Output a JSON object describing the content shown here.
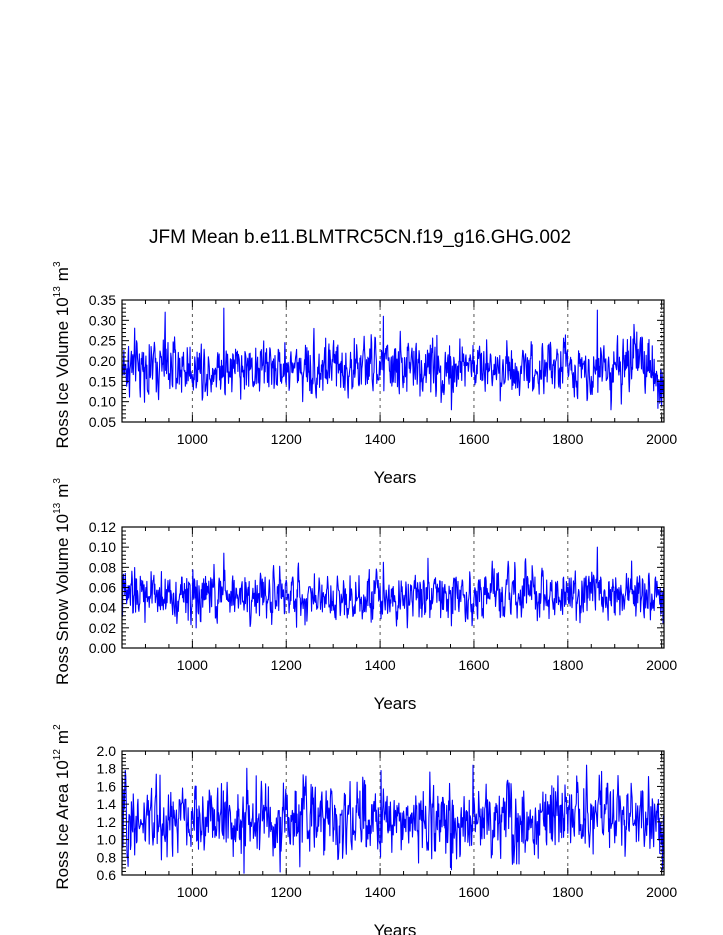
{
  "chart_data": {
    "title": "JFM Mean b.e11.BLMTRC5CN.f19_g16.GHG.002",
    "line_color": "#0000ff",
    "xlim": [
      850,
      2005
    ],
    "x_ticks": [
      1000,
      1200,
      1400,
      1600,
      1800,
      2000
    ],
    "x_tick_labels": [
      "1000",
      "1200",
      "1400",
      "1600",
      "1800",
      "2000"
    ],
    "dashed_vlines_at": [
      1000,
      1200,
      1400,
      1600,
      1800,
      2000
    ],
    "panels": [
      {
        "type": "line",
        "xlabel": "Years",
        "ylabel": {
          "main": "Ross Ice Volume 10",
          "sup": "13",
          "unit": "m",
          "unit_sup": "3"
        },
        "ylim": [
          0.05,
          0.35
        ],
        "y_ticks": [
          0.05,
          0.1,
          0.15,
          0.2,
          0.25,
          0.3,
          0.35
        ],
        "y_tick_labels": [
          "0.05",
          "0.10",
          "0.15",
          "0.20",
          "0.25",
          "0.30",
          "0.35"
        ],
        "series": {
          "name": "Ross Ice Volume",
          "x_start": 850,
          "x_end": 2005,
          "mean": 0.185,
          "spread": 0.035,
          "min": 0.08,
          "max": 0.33,
          "end_trend": [
            1985,
            2005,
            -0.06
          ],
          "peaks": [
            {
              "year": 1067,
              "value": 0.33
            },
            {
              "year": 1863,
              "value": 0.325
            },
            {
              "year": 1407,
              "value": 0.31
            },
            {
              "year": 942,
              "value": 0.32
            },
            {
              "year": 1941,
              "value": 0.29
            },
            {
              "year": 1552,
              "value": 0.08
            },
            {
              "year": 2000,
              "value": 0.09
            }
          ]
        }
      },
      {
        "type": "line",
        "xlabel": "Years",
        "ylabel": {
          "main": "Ross Snow Volume 10",
          "sup": "13",
          "unit": "m",
          "unit_sup": "3"
        },
        "ylim": [
          0.0,
          0.12
        ],
        "y_ticks": [
          0.0,
          0.02,
          0.04,
          0.06,
          0.08,
          0.1,
          0.12
        ],
        "y_tick_labels": [
          "0.00",
          "0.02",
          "0.04",
          "0.06",
          "0.08",
          "0.10",
          "0.12"
        ],
        "series": {
          "name": "Ross Snow Volume",
          "x_start": 850,
          "x_end": 2005,
          "mean": 0.052,
          "spread": 0.012,
          "min": 0.02,
          "max": 0.1,
          "end_trend": [
            1985,
            2005,
            -0.02
          ],
          "peaks": [
            {
              "year": 1863,
              "value": 0.101
            },
            {
              "year": 1067,
              "value": 0.094
            },
            {
              "year": 1502,
              "value": 0.089
            },
            {
              "year": 1407,
              "value": 0.085
            },
            {
              "year": 1008,
              "value": 0.02
            },
            {
              "year": 1552,
              "value": 0.022
            },
            {
              "year": 2003,
              "value": 0.025
            }
          ]
        }
      },
      {
        "type": "line",
        "xlabel": "Years",
        "ylabel": {
          "main": "Ross Ice Area 10",
          "sup": "12",
          "unit": "m",
          "unit_sup": "2"
        },
        "ylim": [
          0.6,
          2.0
        ],
        "y_ticks": [
          0.6,
          0.8,
          1.0,
          1.2,
          1.4,
          1.6,
          1.8,
          2.0
        ],
        "y_tick_labels": [
          "0.6",
          "0.8",
          "1.0",
          "1.2",
          "1.4",
          "1.6",
          "1.8",
          "2.0"
        ],
        "series": {
          "name": "Ross Ice Area",
          "x_start": 850,
          "x_end": 2005,
          "mean": 1.22,
          "spread": 0.2,
          "min": 0.62,
          "max": 1.84,
          "end_trend": [
            1985,
            2005,
            -0.3
          ],
          "peaks": [
            {
              "year": 1598,
              "value": 1.84
            },
            {
              "year": 1872,
              "value": 1.77
            },
            {
              "year": 1136,
              "value": 1.72
            },
            {
              "year": 1402,
              "value": 1.78
            },
            {
              "year": 1110,
              "value": 0.62
            },
            {
              "year": 1552,
              "value": 0.66
            },
            {
              "year": 2002,
              "value": 0.66
            }
          ]
        }
      }
    ]
  }
}
